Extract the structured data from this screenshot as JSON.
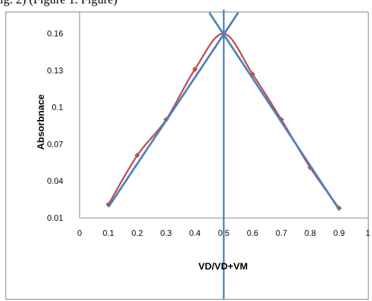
{
  "caption_text": "ig. 2) (Figure 1. Figure)",
  "chart_data": {
    "type": "scatter",
    "title": "",
    "xlabel": "VD/VD+VM",
    "ylabel": "Absorbnace",
    "xlim": [
      0,
      1
    ],
    "ylim": [
      0.01,
      0.175
    ],
    "x_ticks": [
      "0",
      "0.1",
      "0.2",
      "0.3",
      "0.4",
      "0.5",
      "0.6",
      "0.7",
      "0.8",
      "0.9",
      "1"
    ],
    "y_ticks": [
      "0.01",
      "0.04",
      "0.07",
      "0.1",
      "0.13",
      "0.16"
    ],
    "grid": false,
    "legend": "none",
    "series": [
      {
        "style": "smooth line with diamond markers",
        "color": "#c0504d",
        "x": [
          0.1,
          0.2,
          0.3,
          0.4,
          0.5,
          0.6,
          0.7,
          0.8,
          0.9
        ],
        "y": [
          0.021,
          0.061,
          0.09,
          0.131,
          0.16,
          0.127,
          0.09,
          0.051,
          0.018
        ]
      }
    ],
    "tangent_lines": [
      {
        "color": "#4f81bd",
        "from": [
          0.1,
          0.019
        ],
        "to": [
          0.55,
          0.177
        ]
      },
      {
        "color": "#4f81bd",
        "from": [
          0.9,
          0.017
        ],
        "to": [
          0.45,
          0.177
        ]
      }
    ],
    "vertical_line": {
      "x": 0.5,
      "color": "#4f81bd"
    }
  }
}
